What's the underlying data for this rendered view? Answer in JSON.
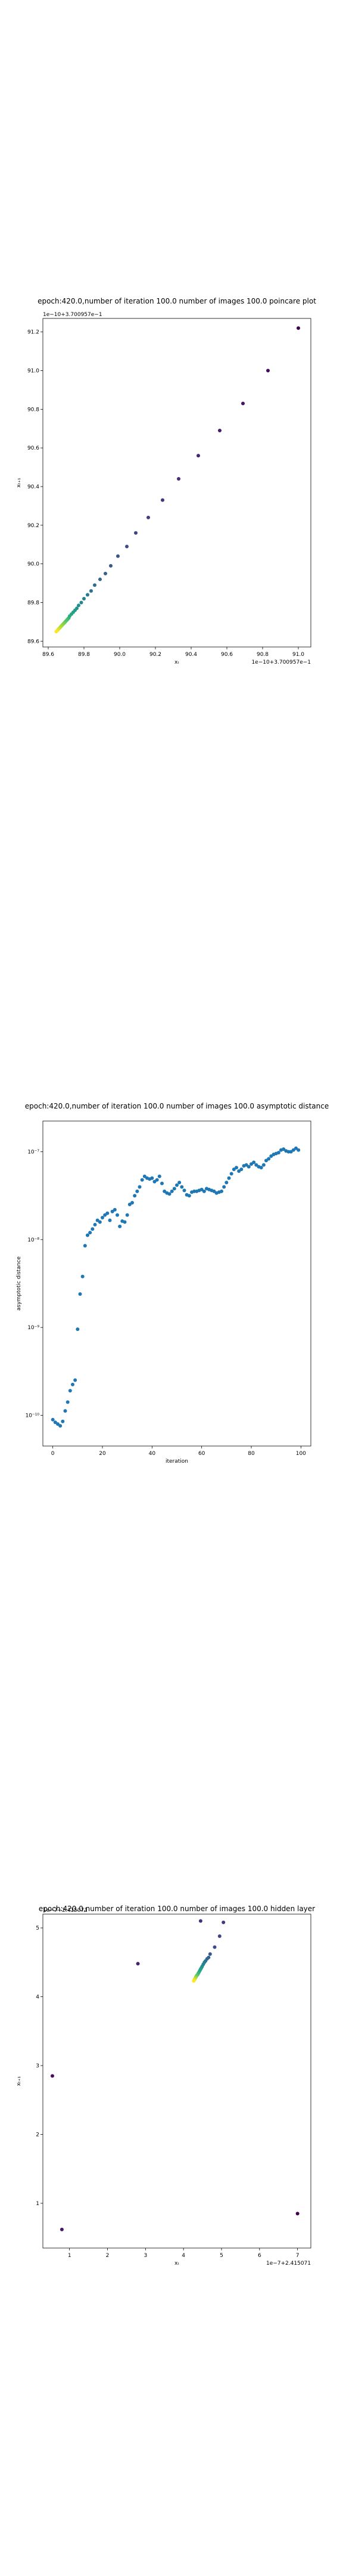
{
  "chart_data": [
    {
      "type": "scatter",
      "title": "epoch:420.0,number of iteration 100.0  number of images 100.0 poincare plot",
      "xlabel": "xₜ",
      "ylabel": "xₜ₊₁",
      "x_offset_text": "1e−10+3.700957e−1",
      "y_offset_text": "1e−10+3.700957e−1",
      "xlim": [
        89.57,
        91.07
      ],
      "ylim": [
        89.57,
        91.27
      ],
      "xticks": [
        89.6,
        89.8,
        90.0,
        90.2,
        90.4,
        90.6,
        90.8,
        91.0
      ],
      "xtick_labels": [
        "89.6",
        "89.8",
        "90.0",
        "90.2",
        "90.4",
        "90.6",
        "90.8",
        "91.0"
      ],
      "yticks": [
        89.6,
        89.8,
        90.0,
        90.2,
        90.4,
        90.6,
        90.8,
        91.0,
        91.2
      ],
      "ytick_labels": [
        "89.6",
        "89.8",
        "90.0",
        "90.2",
        "90.4",
        "90.6",
        "90.8",
        "91.0",
        "91.2"
      ],
      "colormap": "viridis",
      "grid": false,
      "x": [
        91.0,
        90.83,
        90.69,
        90.56,
        90.44,
        90.33,
        90.24,
        90.16,
        90.09,
        90.04,
        89.99,
        89.95,
        89.92,
        89.89,
        89.86,
        89.84,
        89.82,
        89.8,
        89.785,
        89.77,
        89.76,
        89.75,
        89.74,
        89.73,
        89.72,
        89.715,
        89.71,
        89.705,
        89.7,
        89.695,
        89.69,
        89.685,
        89.68,
        89.675,
        89.67,
        89.665,
        89.66,
        89.655,
        89.65,
        89.645
      ],
      "y": [
        91.22,
        91.0,
        90.83,
        90.69,
        90.56,
        90.44,
        90.33,
        90.24,
        90.16,
        90.09,
        90.04,
        89.99,
        89.95,
        89.92,
        89.89,
        89.86,
        89.84,
        89.82,
        89.8,
        89.785,
        89.77,
        89.76,
        89.75,
        89.74,
        89.73,
        89.72,
        89.715,
        89.71,
        89.705,
        89.7,
        89.695,
        89.69,
        89.685,
        89.68,
        89.675,
        89.67,
        89.665,
        89.66,
        89.655,
        89.65
      ]
    },
    {
      "type": "scatter",
      "title": "epoch:420.0,number of iteration 100.0  number of images 100.0 asymptotic distance",
      "xlabel": "iteration",
      "ylabel": "asymptotic distance",
      "yscale": "log",
      "xlim": [
        -4,
        104
      ],
      "ylim": [
        -10.35,
        -6.65
      ],
      "xticks": [
        0,
        20,
        40,
        60,
        80,
        100
      ],
      "xtick_labels": [
        "0",
        "20",
        "40",
        "60",
        "80",
        "100"
      ],
      "yticks": [
        -10,
        -9,
        -8,
        -7
      ],
      "ytick_labels": [
        "10⁻¹⁰",
        "10⁻⁹",
        "10⁻⁸",
        "10⁻⁷"
      ],
      "color": "#1f77b4",
      "grid": false,
      "x": [
        0,
        1,
        2,
        3,
        4,
        5,
        6,
        7,
        8,
        9,
        10,
        11,
        12,
        13,
        14,
        15,
        16,
        17,
        18,
        19,
        20,
        21,
        22,
        23,
        24,
        25,
        26,
        27,
        28,
        29,
        30,
        31,
        32,
        33,
        34,
        35,
        36,
        37,
        38,
        39,
        40,
        41,
        42,
        43,
        44,
        45,
        46,
        47,
        48,
        49,
        50,
        51,
        52,
        53,
        54,
        55,
        56,
        57,
        58,
        59,
        60,
        61,
        62,
        63,
        64,
        65,
        66,
        67,
        68,
        69,
        70,
        71,
        72,
        73,
        74,
        75,
        76,
        77,
        78,
        79,
        80,
        81,
        82,
        83,
        84,
        85,
        86,
        87,
        88,
        89,
        90,
        91,
        92,
        93,
        94,
        95,
        96,
        97,
        98,
        99
      ],
      "y": [
        -10.05,
        -10.08,
        -10.1,
        -10.12,
        -10.07,
        -9.95,
        -9.85,
        -9.72,
        -9.65,
        -9.6,
        -9.02,
        -8.62,
        -8.42,
        -8.07,
        -7.95,
        -7.92,
        -7.88,
        -7.83,
        -7.78,
        -7.8,
        -7.75,
        -7.72,
        -7.7,
        -7.78,
        -7.68,
        -7.66,
        -7.72,
        -7.85,
        -7.79,
        -7.8,
        -7.72,
        -7.6,
        -7.58,
        -7.5,
        -7.45,
        -7.4,
        -7.32,
        -7.28,
        -7.3,
        -7.31,
        -7.3,
        -7.34,
        -7.32,
        -7.28,
        -7.36,
        -7.45,
        -7.47,
        -7.48,
        -7.45,
        -7.42,
        -7.38,
        -7.35,
        -7.4,
        -7.44,
        -7.49,
        -7.5,
        -7.46,
        -7.45,
        -7.45,
        -7.44,
        -7.43,
        -7.45,
        -7.42,
        -7.43,
        -7.44,
        -7.45,
        -7.47,
        -7.46,
        -7.45,
        -7.4,
        -7.35,
        -7.3,
        -7.25,
        -7.2,
        -7.18,
        -7.22,
        -7.2,
        -7.16,
        -7.15,
        -7.17,
        -7.14,
        -7.12,
        -7.15,
        -7.17,
        -7.18,
        -7.15,
        -7.1,
        -7.08,
        -7.05,
        -7.03,
        -7.02,
        -7.01,
        -6.98,
        -6.97,
        -6.99,
        -7.0,
        -7.0,
        -6.98,
        -6.96,
        -6.98
      ]
    },
    {
      "type": "scatter",
      "title": "epoch:420.0,number of iteration 100.0  number of images 100.0 hidden layer",
      "xlabel": "xₜ",
      "ylabel": "xₜ₊₁",
      "x_offset_text": "1e−7+2.415071",
      "y_offset_text": "1e−7+2.415071",
      "xlim": [
        0.3,
        7.35
      ],
      "ylim": [
        0.35,
        5.2
      ],
      "xticks": [
        1,
        2,
        3,
        4,
        5,
        6,
        7
      ],
      "xtick_labels": [
        "1",
        "2",
        "3",
        "4",
        "5",
        "6",
        "7"
      ],
      "yticks": [
        1,
        2,
        3,
        4,
        5
      ],
      "ytick_labels": [
        "1",
        "2",
        "3",
        "4",
        "5"
      ],
      "colormap": "viridis",
      "grid": false,
      "x": [
        7.0,
        0.55,
        0.8,
        2.8,
        4.45,
        5.05,
        4.95,
        4.82,
        4.7,
        4.66,
        4.62,
        4.58,
        4.55,
        4.52,
        4.49,
        4.47,
        4.45,
        4.43,
        4.41,
        4.39,
        4.37,
        4.35,
        4.34,
        4.33,
        4.32,
        4.31,
        4.3,
        4.29,
        4.28,
        4.27
      ],
      "y": [
        0.85,
        2.85,
        0.62,
        4.48,
        5.1,
        5.08,
        4.88,
        4.72,
        4.62,
        4.57,
        4.55,
        4.52,
        4.5,
        4.47,
        4.44,
        4.42,
        4.4,
        4.38,
        4.36,
        4.34,
        4.32,
        4.31,
        4.3,
        4.29,
        4.28,
        4.27,
        4.26,
        4.25,
        4.24,
        4.23
      ]
    }
  ]
}
